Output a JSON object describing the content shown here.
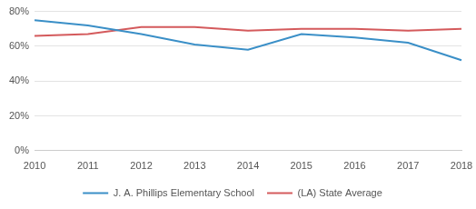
{
  "chart_data": {
    "type": "line",
    "categories": [
      "2010",
      "2011",
      "2012",
      "2013",
      "2014",
      "2015",
      "2016",
      "2017",
      "2018"
    ],
    "series": [
      {
        "name": "J. A. Phillips Elementary School",
        "color": "#3a8fc7",
        "values": [
          75,
          72,
          67,
          61,
          58,
          67,
          65,
          62,
          52
        ]
      },
      {
        "name": "(LA) State Average",
        "color": "#d45a5c",
        "values": [
          66,
          67,
          71,
          71,
          69,
          70,
          70,
          69,
          70
        ]
      }
    ],
    "ylim": [
      0,
      80
    ],
    "yticks": [
      {
        "value": 0,
        "label": "0%"
      },
      {
        "value": 20,
        "label": "20%"
      },
      {
        "value": 40,
        "label": "40%"
      },
      {
        "value": 60,
        "label": "60%"
      },
      {
        "value": 80,
        "label": "80%"
      }
    ],
    "grid": true,
    "legend": "bottom",
    "marker": "none"
  }
}
